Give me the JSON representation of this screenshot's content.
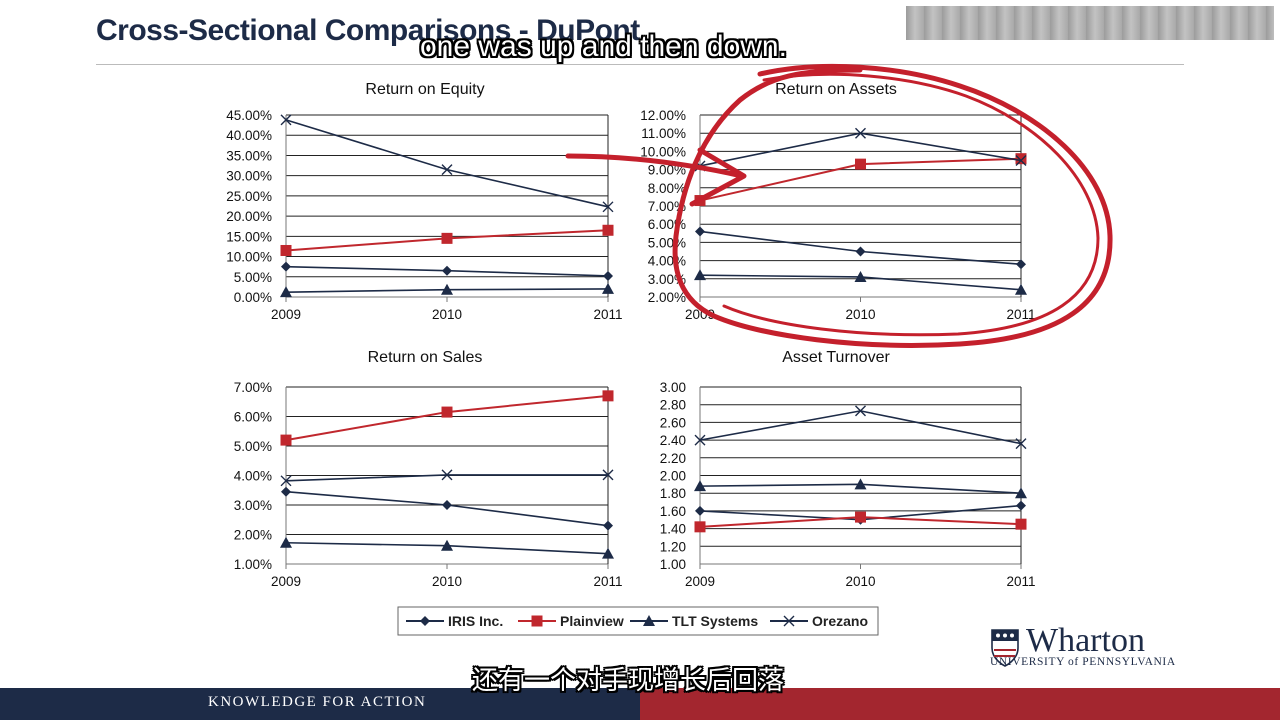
{
  "slide": {
    "title": "Cross-Sectional Comparisons - DuPont",
    "caption_en": "one was up and then down.",
    "caption_cn": "还有一个对手现增长后回落",
    "footer": "KNOWLEDGE FOR ACTION",
    "logo": {
      "word": "Wharton",
      "sub": "UNIVERSITY of PENNSYLVANIA"
    }
  },
  "colors": {
    "navy": "#1d2b47",
    "red": "#c0272d",
    "annotation": "#c4202c",
    "footer_red": "#a3262f"
  },
  "legend": [
    {
      "name": "IRIS Inc.",
      "marker": "diamond",
      "color": "#1d2b47"
    },
    {
      "name": "Plainview",
      "marker": "square",
      "color": "#c0272d"
    },
    {
      "name": "TLT Systems",
      "marker": "triangle",
      "color": "#1d2b47"
    },
    {
      "name": "Orezano",
      "marker": "x",
      "color": "#1d2b47"
    }
  ],
  "chart_data": [
    {
      "type": "line",
      "title": "Return on Equity",
      "x": [
        "2009",
        "2010",
        "2011"
      ],
      "yticks": [
        "0.00%",
        "5.00%",
        "10.00%",
        "15.00%",
        "20.00%",
        "25.00%",
        "30.00%",
        "35.00%",
        "40.00%",
        "45.00%"
      ],
      "ylim": [
        0,
        45
      ],
      "grid": true,
      "series": [
        {
          "name": "IRIS Inc.",
          "marker": "diamond",
          "values": [
            7.5,
            6.5,
            5.2
          ]
        },
        {
          "name": "Plainview",
          "marker": "square",
          "values": [
            11.5,
            14.5,
            16.5
          ]
        },
        {
          "name": "TLT Systems",
          "marker": "triangle",
          "values": [
            1.2,
            1.8,
            2.0
          ]
        },
        {
          "name": "Orezano",
          "marker": "x",
          "values": [
            43.8,
            31.5,
            22.3
          ]
        }
      ]
    },
    {
      "type": "line",
      "title": "Return on Assets",
      "x": [
        "2009",
        "2010",
        "2011"
      ],
      "yticks": [
        "2.00%",
        "3.00%",
        "4.00%",
        "5.00%",
        "6.00%",
        "7.00%",
        "8.00%",
        "9.00%",
        "10.00%",
        "11.00%",
        "12.00%"
      ],
      "ylim": [
        2,
        12
      ],
      "grid": true,
      "series": [
        {
          "name": "IRIS Inc.",
          "marker": "diamond",
          "values": [
            5.6,
            4.5,
            3.8
          ]
        },
        {
          "name": "Plainview",
          "marker": "square",
          "values": [
            7.3,
            9.3,
            9.6
          ]
        },
        {
          "name": "TLT Systems",
          "marker": "triangle",
          "values": [
            3.2,
            3.1,
            2.4
          ]
        },
        {
          "name": "Orezano",
          "marker": "x",
          "values": [
            9.2,
            11.0,
            9.5
          ]
        }
      ]
    },
    {
      "type": "line",
      "title": "Return on Sales",
      "x": [
        "2009",
        "2010",
        "2011"
      ],
      "yticks": [
        "1.00%",
        "2.00%",
        "3.00%",
        "4.00%",
        "5.00%",
        "6.00%",
        "7.00%"
      ],
      "ylim": [
        1,
        7
      ],
      "grid": true,
      "series": [
        {
          "name": "IRIS Inc.",
          "marker": "diamond",
          "values": [
            3.45,
            3.0,
            2.3
          ]
        },
        {
          "name": "Plainview",
          "marker": "square",
          "values": [
            5.2,
            6.15,
            6.7
          ]
        },
        {
          "name": "TLT Systems",
          "marker": "triangle",
          "values": [
            1.72,
            1.62,
            1.35
          ]
        },
        {
          "name": "Orezano",
          "marker": "x",
          "values": [
            3.82,
            4.02,
            4.02
          ]
        }
      ]
    },
    {
      "type": "line",
      "title": "Asset Turnover",
      "x": [
        "2009",
        "2010",
        "2011"
      ],
      "yticks": [
        "1.00",
        "1.20",
        "1.40",
        "1.60",
        "1.80",
        "2.00",
        "2.20",
        "2.40",
        "2.60",
        "2.80",
        "3.00"
      ],
      "ylim": [
        1,
        3
      ],
      "grid": true,
      "series": [
        {
          "name": "IRIS Inc.",
          "marker": "diamond",
          "values": [
            1.6,
            1.5,
            1.66
          ]
        },
        {
          "name": "Plainview",
          "marker": "square",
          "values": [
            1.42,
            1.53,
            1.45
          ]
        },
        {
          "name": "TLT Systems",
          "marker": "triangle",
          "values": [
            1.88,
            1.9,
            1.8
          ]
        },
        {
          "name": "Orezano",
          "marker": "x",
          "values": [
            2.4,
            2.73,
            2.36
          ]
        }
      ]
    }
  ]
}
